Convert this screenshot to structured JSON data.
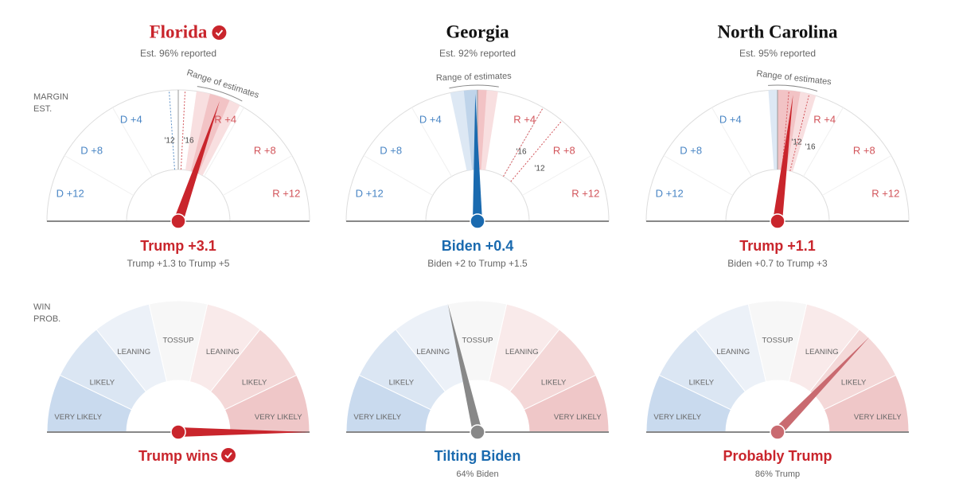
{
  "margin_heading": [
    "MARGIN",
    "EST."
  ],
  "win_heading": [
    "WIN",
    "PROB."
  ],
  "range_label": "Range of estimates",
  "past_years": [
    "'12",
    "'16"
  ],
  "margin_scale": [
    "D +12",
    "D +8",
    "D +4",
    "R +4",
    "R +8",
    "R +12"
  ],
  "win_scale": [
    "VERY LIKELY",
    "LIKELY",
    "LEANING",
    "TOSSUP",
    "LEANING",
    "LIKELY",
    "VERY LIKELY"
  ],
  "states": [
    {
      "name": "Florida",
      "reported": "Est. 96% reported",
      "margin": "Trump +3.1",
      "margin_range": "Trump +1.3 to Trump +5",
      "outcome": "Trump wins"
    },
    {
      "name": "Georgia",
      "reported": "Est. 92% reported",
      "margin": "Biden +0.4",
      "margin_range": "Biden +2 to Trump +1.5",
      "outcome": "Tilting Biden",
      "outcome_detail": "64% Biden"
    },
    {
      "name": "North Carolina",
      "reported": "Est. 95% reported",
      "margin": "Trump +1.1",
      "margin_range": "Biden +0.7 to Trump +3",
      "outcome": "Probably Trump",
      "outcome_detail": "86% Trump"
    }
  ]
}
